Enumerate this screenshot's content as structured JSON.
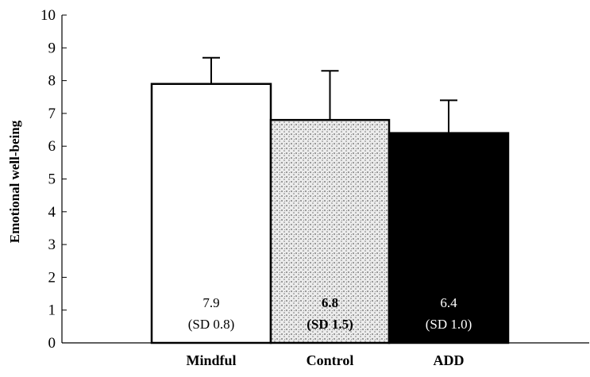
{
  "chart_data": {
    "type": "bar",
    "title": "",
    "xlabel": "",
    "ylabel": "Emotional well-being",
    "ylim": [
      0,
      10
    ],
    "yticks": [
      0,
      1,
      2,
      3,
      4,
      5,
      6,
      7,
      8,
      9,
      10
    ],
    "categories": [
      "Mindful",
      "Control",
      "ADD"
    ],
    "values": [
      7.9,
      6.8,
      6.4
    ],
    "error_upper": [
      8.7,
      8.3,
      7.4
    ],
    "value_labels": [
      "7.9",
      "6.8",
      "6.4"
    ],
    "sd_labels": [
      "(SD 0.8)",
      "(SD 1.5)",
      "(SD 1.0)"
    ],
    "bar_fills": [
      "white",
      "stippled-gray",
      "black"
    ],
    "grid": false,
    "colors": {
      "mindful": "#ffffff",
      "control": "#d4d4d4",
      "add": "#000000",
      "axis": "#000000"
    }
  }
}
